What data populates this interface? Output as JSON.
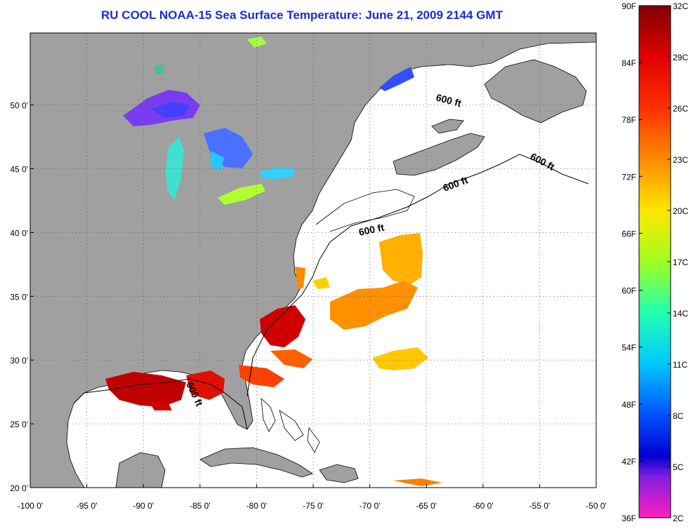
{
  "title": "RU COOL  NOAA-15  Sea Surface Temperature:  June 21, 2009 2144 GMT",
  "map": {
    "lon_ticks": [
      "-100 0'",
      "-95 0'",
      "-90 0'",
      "-85 0'",
      "-80 0'",
      "-75 0'",
      "-70 0'",
      "-65 0'",
      "-60 0'",
      "-55 0'",
      "-50 0'"
    ],
    "lat_ticks": [
      "50 0'",
      "45 0'",
      "40 0'",
      "35 0'",
      "30 0'",
      "25 0'",
      "20 0'"
    ],
    "contour_label": "600 ft",
    "colors": {
      "land": "#a0a0a0",
      "water": "#ffffff"
    }
  },
  "colorbar": {
    "fahrenheit": [
      "90F",
      "84F",
      "78F",
      "72F",
      "66F",
      "60F",
      "54F",
      "48F",
      "42F",
      "36F"
    ],
    "celsius": [
      "32C",
      "29C",
      "26C",
      "23C",
      "20C",
      "17C",
      "14C",
      "11C",
      "8C",
      "5C",
      "2C"
    ]
  }
}
